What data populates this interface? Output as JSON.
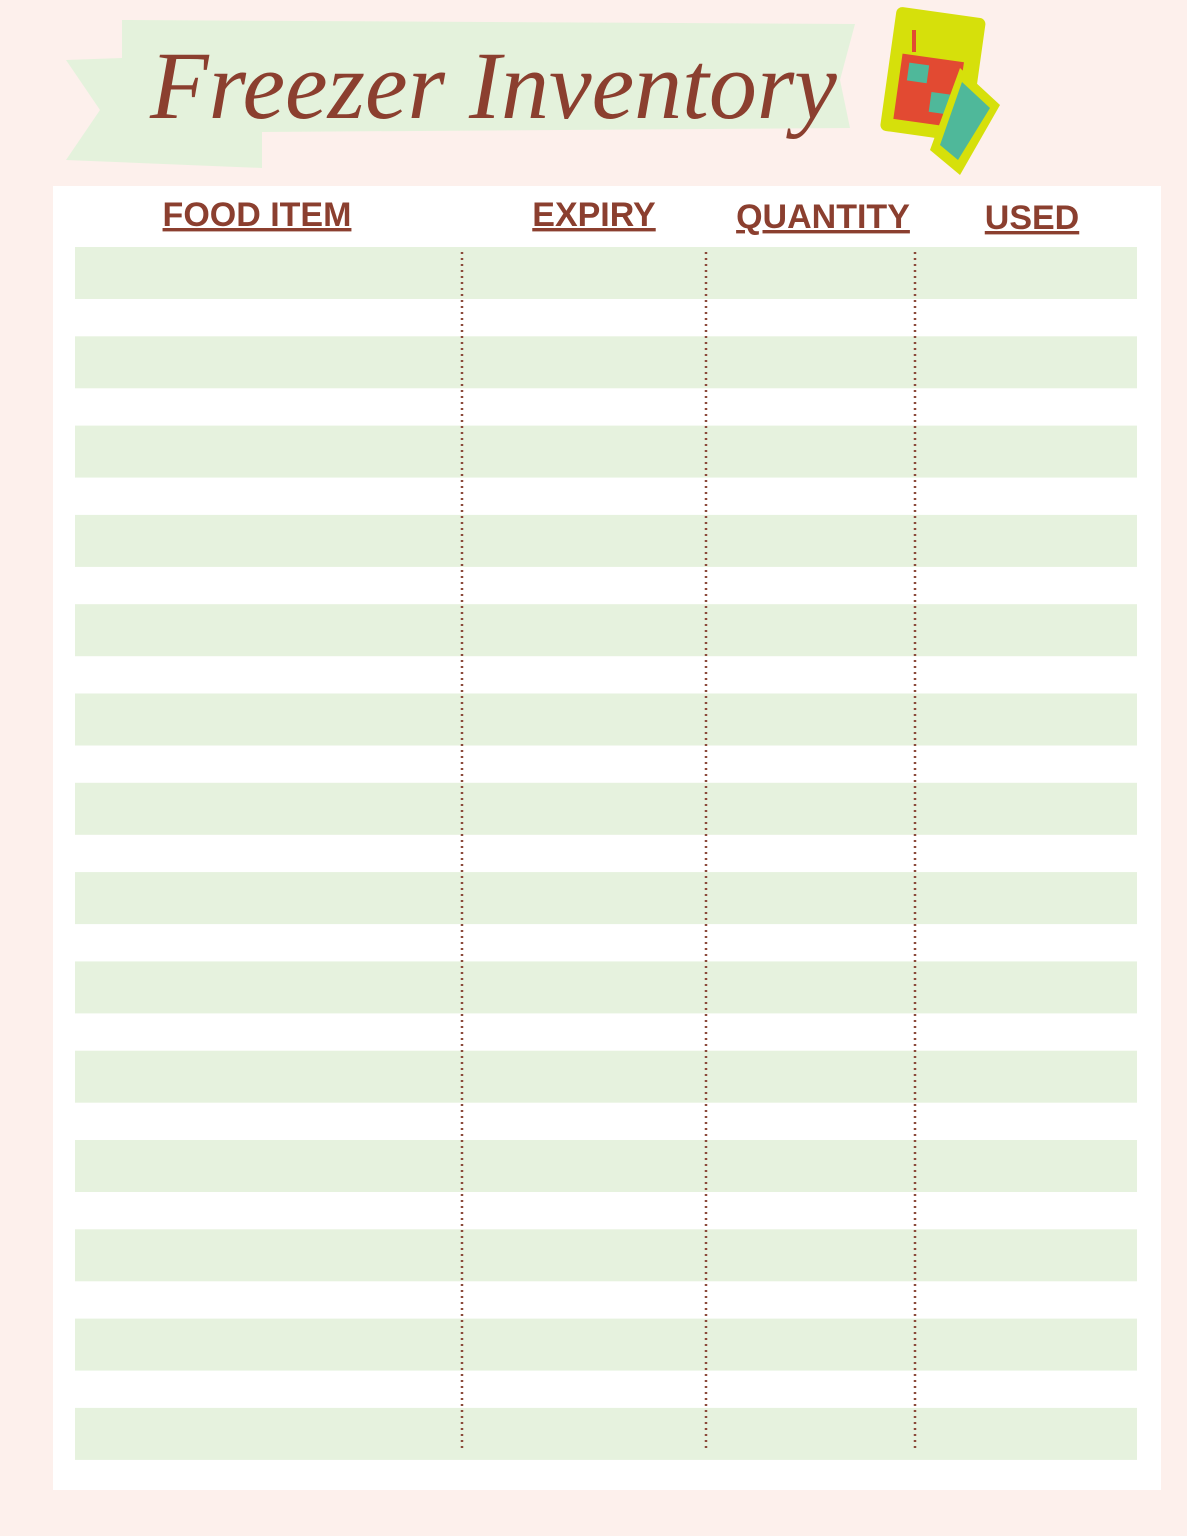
{
  "header": {
    "title": "Freezer Inventory"
  },
  "table": {
    "columns": [
      "FOOD ITEM",
      "EXPIRY",
      "QUANTITY",
      "USED"
    ]
  }
}
